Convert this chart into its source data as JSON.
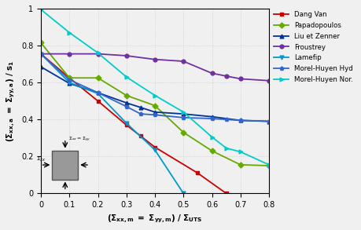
{
  "xlim": [
    0,
    0.8
  ],
  "ylim": [
    0,
    1.0
  ],
  "xticks": [
    0,
    0.1,
    0.2,
    0.3,
    0.4,
    0.5,
    0.6,
    0.7,
    0.8
  ],
  "yticks": [
    0,
    0.2,
    0.4,
    0.6,
    0.8,
    1
  ],
  "series": [
    {
      "name": "Dang Van",
      "color": "#cc0000",
      "marker": "s",
      "x": [
        0,
        0.1,
        0.2,
        0.3,
        0.35,
        0.4,
        0.55,
        0.65
      ],
      "y": [
        0.755,
        0.625,
        0.5,
        0.37,
        0.31,
        0.25,
        0.11,
        0.0
      ]
    },
    {
      "name": "Papadopoulos",
      "color": "#66aa00",
      "marker": "D",
      "x": [
        0,
        0.1,
        0.2,
        0.3,
        0.4,
        0.5,
        0.6,
        0.7,
        0.8
      ],
      "y": [
        0.815,
        0.625,
        0.625,
        0.53,
        0.475,
        0.33,
        0.23,
        0.155,
        0.15
      ]
    },
    {
      "name": "Liu et Zenner",
      "color": "#003399",
      "marker": "^",
      "x": [
        0,
        0.1,
        0.2,
        0.3,
        0.35,
        0.4,
        0.5,
        0.6,
        0.7,
        0.8
      ],
      "y": [
        0.685,
        0.595,
        0.545,
        0.49,
        0.465,
        0.44,
        0.43,
        0.415,
        0.395,
        0.39
      ]
    },
    {
      "name": "Froustrey",
      "color": "#7030a0",
      "marker": "o",
      "x": [
        0,
        0.1,
        0.2,
        0.3,
        0.4,
        0.5,
        0.6,
        0.65,
        0.7,
        0.8
      ],
      "y": [
        0.755,
        0.755,
        0.755,
        0.745,
        0.725,
        0.715,
        0.65,
        0.635,
        0.62,
        0.61
      ]
    },
    {
      "name": "Lamefip",
      "color": "#0099cc",
      "marker": "v",
      "x": [
        0,
        0.1,
        0.2,
        0.3,
        0.4,
        0.5
      ],
      "y": [
        0.755,
        0.6,
        0.54,
        0.38,
        0.235,
        0.0
      ]
    },
    {
      "name": "Morel-Huyen Hyd",
      "color": "#3366cc",
      "marker": "p",
      "x": [
        0,
        0.1,
        0.2,
        0.3,
        0.35,
        0.4,
        0.5,
        0.6,
        0.65,
        0.7,
        0.8
      ],
      "y": [
        0.755,
        0.615,
        0.545,
        0.47,
        0.43,
        0.425,
        0.41,
        0.405,
        0.4,
        0.395,
        0.39
      ]
    },
    {
      "name": "Morel-Huyen Nor.",
      "color": "#00cccc",
      "marker": ">",
      "x": [
        0,
        0.1,
        0.2,
        0.3,
        0.4,
        0.5,
        0.6,
        0.65,
        0.7,
        0.8
      ],
      "y": [
        0.995,
        0.87,
        0.76,
        0.63,
        0.53,
        0.44,
        0.305,
        0.245,
        0.225,
        0.155
      ]
    }
  ],
  "bg_color": "#f0f0f0",
  "grid_color": "#cccccc"
}
